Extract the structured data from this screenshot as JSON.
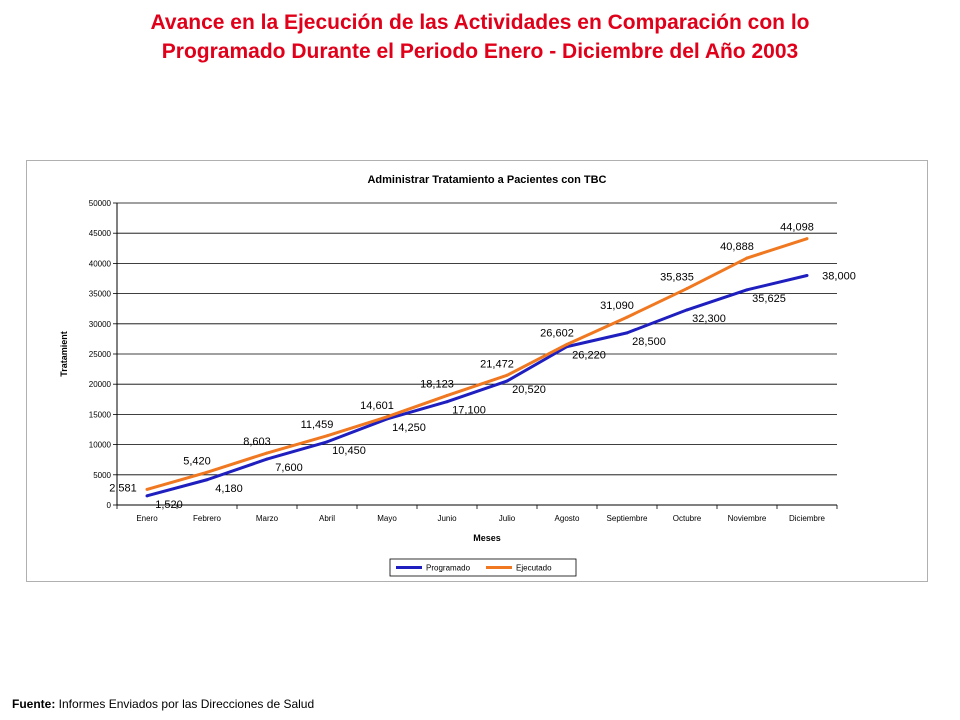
{
  "page": {
    "title_line1": "Avance en la Ejecución de las Actividades en Comparación con lo",
    "title_line2": "Programado Durante el Periodo Enero - Diciembre del Año 2003",
    "source_label": "Fuente:",
    "source_text": " Informes Enviados por las Direcciones de Salud"
  },
  "chart_data": {
    "type": "line",
    "title": "Administrar Tratamiento a Pacientes con TBC",
    "xlabel": "Meses",
    "ylabel": "Tratamient",
    "ylim": [
      0,
      50000
    ],
    "yticks": [
      0,
      5000,
      10000,
      15000,
      20000,
      25000,
      30000,
      35000,
      40000,
      45000,
      50000
    ],
    "ytick_labels": [
      "0",
      "5000",
      "10000",
      "15000",
      "20000",
      "25000",
      "30000",
      "35000",
      "40000",
      "45000",
      "50000"
    ],
    "grid": true,
    "legend_position": "bottom",
    "categories": [
      "Enero",
      "Febrero",
      "Marzo",
      "Abril",
      "Mayo",
      "Junio",
      "Julio",
      "Agosto",
      "Septiembre",
      "Octubre",
      "Noviembre",
      "Diciembre"
    ],
    "series": [
      {
        "name": "Programado",
        "color": "#1f1fbf",
        "values": [
          1520,
          4180,
          7600,
          10450,
          14250,
          17100,
          20520,
          26220,
          28500,
          32300,
          35625,
          38000
        ],
        "labels": [
          "1,520",
          "4,180",
          "7,600",
          "10,450",
          "14,250",
          "17,100",
          "20,520",
          "26,220",
          "28,500",
          "32,300",
          "35,625",
          "38,000"
        ]
      },
      {
        "name": "Ejecutado",
        "color": "#f07820",
        "values": [
          2581,
          5420,
          8603,
          11459,
          14601,
          18123,
          21472,
          26602,
          31090,
          35835,
          40888,
          44098
        ],
        "labels": [
          "2,581",
          "5,420",
          "8,603",
          "11,459",
          "14,601",
          "18,123",
          "21,472",
          "26,602",
          "31,090",
          "35,835",
          "40,888",
          "44,098"
        ]
      }
    ]
  }
}
